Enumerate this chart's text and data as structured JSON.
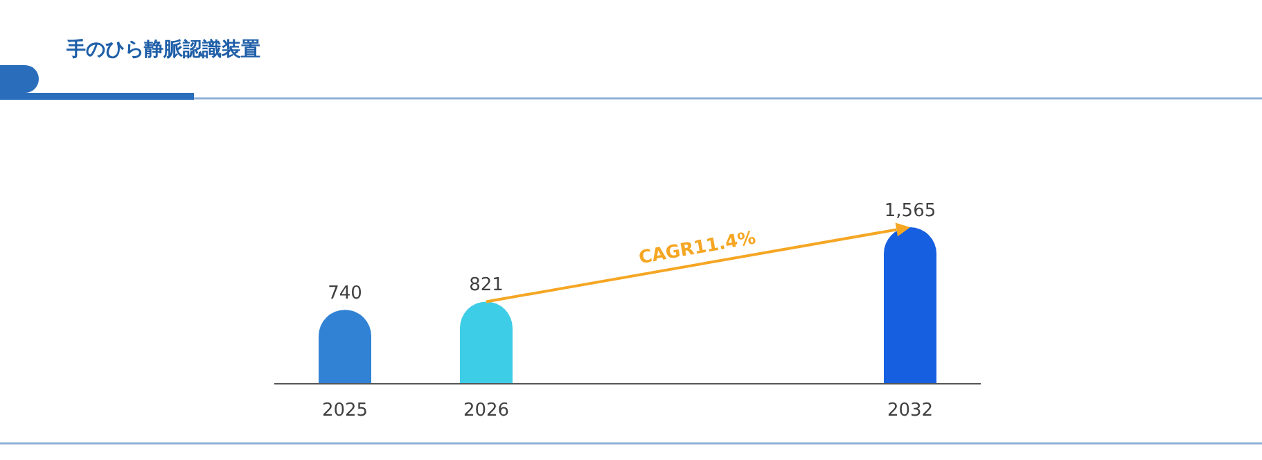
{
  "chart_data": {
    "type": "bar",
    "title": "手のひら静脈認識装置",
    "categories": [
      "2025",
      "2026",
      null,
      null,
      "2032"
    ],
    "values": [
      740,
      821,
      null,
      null,
      1565
    ],
    "colors": [
      "#3182d4",
      "#3ecde6",
      null,
      null,
      "#165fe0"
    ],
    "value_labels": [
      "740",
      "821",
      null,
      null,
      "1,565"
    ],
    "annotations": [
      "CAGR11.4%"
    ]
  }
}
